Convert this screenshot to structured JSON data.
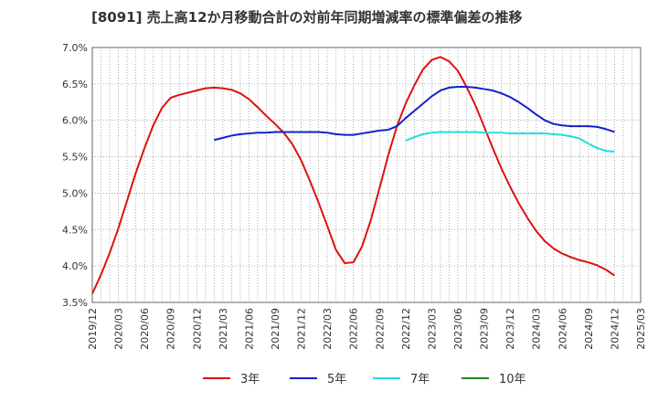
{
  "chart_data": {
    "type": "line",
    "title": "[8091]  売上高12か月移動合計の対前年同期増減率の標準偏差の推移",
    "xlabel": "",
    "ylabel": "",
    "ylim": [
      3.5,
      7.0
    ],
    "xlim": [
      "2019-12",
      "2025-03"
    ],
    "grid": true,
    "legend_position": "bottom",
    "y_ticks": [
      "3.5%",
      "4.0%",
      "4.5%",
      "5.0%",
      "5.5%",
      "6.0%",
      "6.5%",
      "7.0%"
    ],
    "x_ticks": [
      "2019/12",
      "2020/03",
      "2020/06",
      "2020/09",
      "2020/12",
      "2021/03",
      "2021/06",
      "2021/09",
      "2021/12",
      "2022/03",
      "2022/06",
      "2022/09",
      "2022/12",
      "2023/03",
      "2023/06",
      "2023/09",
      "2023/12",
      "2024/03",
      "2024/06",
      "2024/09",
      "2024/12",
      "2025/03"
    ],
    "series": [
      {
        "name": "3年",
        "color": "#dd1111",
        "points": [
          [
            "2019-12",
            3.62
          ],
          [
            "2020-01",
            3.88
          ],
          [
            "2020-02",
            4.18
          ],
          [
            "2020-03",
            4.52
          ],
          [
            "2020-04",
            4.9
          ],
          [
            "2020-05",
            5.28
          ],
          [
            "2020-06",
            5.62
          ],
          [
            "2020-07",
            5.93
          ],
          [
            "2020-08",
            6.17
          ],
          [
            "2020-09",
            6.31
          ],
          [
            "2020-10",
            6.35
          ],
          [
            "2020-11",
            6.38
          ],
          [
            "2020-12",
            6.41
          ],
          [
            "2021-01",
            6.44
          ],
          [
            "2021-02",
            6.45
          ],
          [
            "2021-03",
            6.44
          ],
          [
            "2021-04",
            6.42
          ],
          [
            "2021-05",
            6.37
          ],
          [
            "2021-06",
            6.29
          ],
          [
            "2021-07",
            6.18
          ],
          [
            "2021-08",
            6.06
          ],
          [
            "2021-09",
            5.95
          ],
          [
            "2021-10",
            5.83
          ],
          [
            "2021-11",
            5.67
          ],
          [
            "2021-12",
            5.45
          ],
          [
            "2022-01",
            5.17
          ],
          [
            "2022-02",
            4.87
          ],
          [
            "2022-03",
            4.55
          ],
          [
            "2022-04",
            4.22
          ],
          [
            "2022-05",
            4.04
          ],
          [
            "2022-06",
            4.05
          ],
          [
            "2022-07",
            4.27
          ],
          [
            "2022-08",
            4.63
          ],
          [
            "2022-09",
            5.07
          ],
          [
            "2022-10",
            5.52
          ],
          [
            "2022-11",
            5.92
          ],
          [
            "2022-12",
            6.23
          ],
          [
            "2023-01",
            6.48
          ],
          [
            "2023-02",
            6.7
          ],
          [
            "2023-03",
            6.83
          ],
          [
            "2023-04",
            6.87
          ],
          [
            "2023-05",
            6.81
          ],
          [
            "2023-06",
            6.68
          ],
          [
            "2023-07",
            6.46
          ],
          [
            "2023-08",
            6.21
          ],
          [
            "2023-09",
            5.92
          ],
          [
            "2023-10",
            5.62
          ],
          [
            "2023-11",
            5.34
          ],
          [
            "2023-12",
            5.09
          ],
          [
            "2024-01",
            4.86
          ],
          [
            "2024-02",
            4.66
          ],
          [
            "2024-03",
            4.48
          ],
          [
            "2024-04",
            4.34
          ],
          [
            "2024-05",
            4.24
          ],
          [
            "2024-06",
            4.17
          ],
          [
            "2024-07",
            4.12
          ],
          [
            "2024-08",
            4.08
          ],
          [
            "2024-09",
            4.05
          ],
          [
            "2024-10",
            4.01
          ],
          [
            "2024-11",
            3.95
          ],
          [
            "2024-12",
            3.87
          ]
        ]
      },
      {
        "name": "5年",
        "color": "#1122cc",
        "points": [
          [
            "2021-02",
            5.73
          ],
          [
            "2021-03",
            5.76
          ],
          [
            "2021-04",
            5.79
          ],
          [
            "2021-05",
            5.81
          ],
          [
            "2021-06",
            5.82
          ],
          [
            "2021-07",
            5.83
          ],
          [
            "2021-08",
            5.83
          ],
          [
            "2021-09",
            5.84
          ],
          [
            "2021-10",
            5.84
          ],
          [
            "2021-11",
            5.84
          ],
          [
            "2021-12",
            5.84
          ],
          [
            "2022-01",
            5.84
          ],
          [
            "2022-02",
            5.84
          ],
          [
            "2022-03",
            5.83
          ],
          [
            "2022-04",
            5.81
          ],
          [
            "2022-05",
            5.8
          ],
          [
            "2022-06",
            5.8
          ],
          [
            "2022-07",
            5.82
          ],
          [
            "2022-08",
            5.84
          ],
          [
            "2022-09",
            5.86
          ],
          [
            "2022-10",
            5.87
          ],
          [
            "2022-11",
            5.92
          ],
          [
            "2022-12",
            6.03
          ],
          [
            "2023-01",
            6.13
          ],
          [
            "2023-02",
            6.23
          ],
          [
            "2023-03",
            6.33
          ],
          [
            "2023-04",
            6.41
          ],
          [
            "2023-05",
            6.45
          ],
          [
            "2023-06",
            6.46
          ],
          [
            "2023-07",
            6.46
          ],
          [
            "2023-08",
            6.45
          ],
          [
            "2023-09",
            6.43
          ],
          [
            "2023-10",
            6.41
          ],
          [
            "2023-11",
            6.37
          ],
          [
            "2023-12",
            6.32
          ],
          [
            "2024-01",
            6.25
          ],
          [
            "2024-02",
            6.17
          ],
          [
            "2024-03",
            6.08
          ],
          [
            "2024-04",
            6.0
          ],
          [
            "2024-05",
            5.95
          ],
          [
            "2024-06",
            5.93
          ],
          [
            "2024-07",
            5.92
          ],
          [
            "2024-08",
            5.92
          ],
          [
            "2024-09",
            5.92
          ],
          [
            "2024-10",
            5.91
          ],
          [
            "2024-11",
            5.88
          ],
          [
            "2024-12",
            5.84
          ]
        ]
      },
      {
        "name": "7年",
        "color": "#22dddd",
        "points": [
          [
            "2022-12",
            5.72
          ],
          [
            "2023-01",
            5.77
          ],
          [
            "2023-02",
            5.81
          ],
          [
            "2023-03",
            5.83
          ],
          [
            "2023-04",
            5.84
          ],
          [
            "2023-05",
            5.84
          ],
          [
            "2023-06",
            5.84
          ],
          [
            "2023-07",
            5.84
          ],
          [
            "2023-08",
            5.84
          ],
          [
            "2023-09",
            5.83
          ],
          [
            "2023-10",
            5.83
          ],
          [
            "2023-11",
            5.83
          ],
          [
            "2023-12",
            5.82
          ],
          [
            "2024-01",
            5.82
          ],
          [
            "2024-02",
            5.82
          ],
          [
            "2024-03",
            5.82
          ],
          [
            "2024-04",
            5.82
          ],
          [
            "2024-05",
            5.81
          ],
          [
            "2024-06",
            5.8
          ],
          [
            "2024-07",
            5.78
          ],
          [
            "2024-08",
            5.75
          ],
          [
            "2024-09",
            5.68
          ],
          [
            "2024-10",
            5.62
          ],
          [
            "2024-11",
            5.58
          ],
          [
            "2024-12",
            5.57
          ]
        ]
      },
      {
        "name": "10年",
        "color": "#228822",
        "points": []
      }
    ]
  }
}
